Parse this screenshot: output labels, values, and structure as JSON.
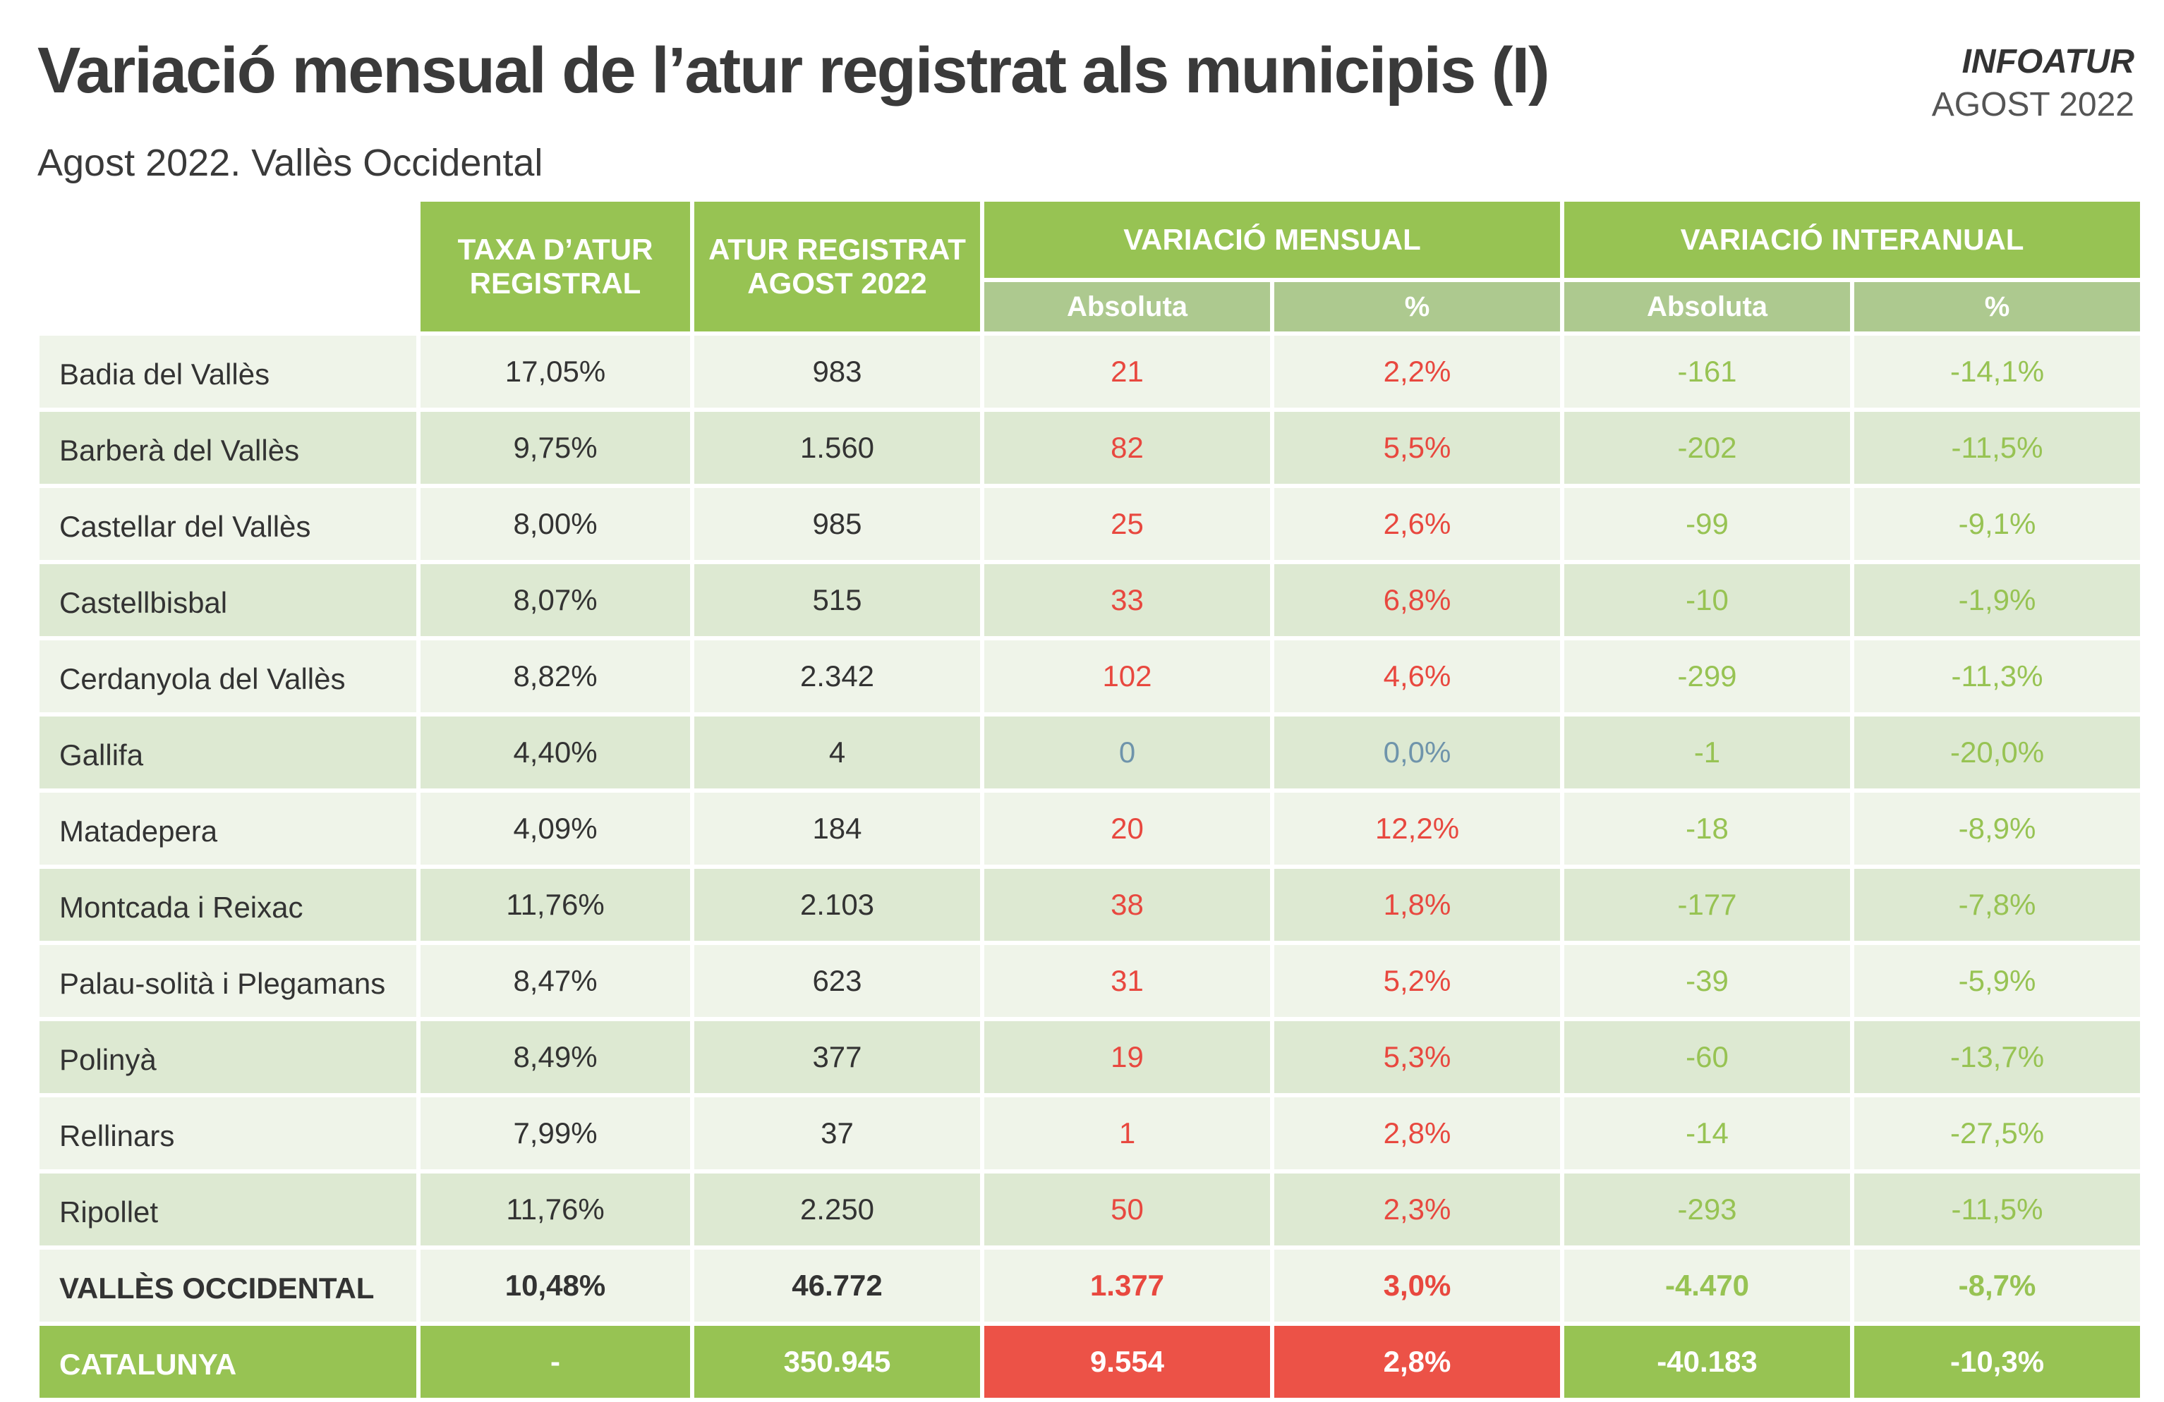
{
  "header": {
    "title": "Variació mensual de l’atur registrat als municipis (I)",
    "subtitle": "Agost 2022. Vallès Occidental",
    "brand": "INFOATUR",
    "period": "AGOST 2022"
  },
  "columns": {
    "rate_l1": "TAXA D’ATUR",
    "rate_l2": "REGISTRAL",
    "reg_l1": "ATUR REGISTRAT",
    "reg_l2": "AGOST 2022",
    "monthly": "VARIACIÓ MENSUAL",
    "annual": "VARIACIÓ INTERANUAL",
    "abs": "Absoluta",
    "pct": "%"
  },
  "colors": {
    "header_green": "#97c353",
    "subheader_green": "#adc98f",
    "increase_red": "#e8483f",
    "decrease_green": "#97c353",
    "zero_blue": "#6f94ab"
  },
  "rows": [
    {
      "name": "Badia del Vallès",
      "rate": "17,05%",
      "reg": "983",
      "m_abs": "21",
      "m_pct": "2,2%",
      "a_abs": "-161",
      "a_pct": "-14,1%"
    },
    {
      "name": "Barberà del Vallès",
      "rate": "9,75%",
      "reg": "1.560",
      "m_abs": "82",
      "m_pct": "5,5%",
      "a_abs": "-202",
      "a_pct": "-11,5%"
    },
    {
      "name": "Castellar del Vallès",
      "rate": "8,00%",
      "reg": "985",
      "m_abs": "25",
      "m_pct": "2,6%",
      "a_abs": "-99",
      "a_pct": "-9,1%"
    },
    {
      "name": "Castellbisbal",
      "rate": "8,07%",
      "reg": "515",
      "m_abs": "33",
      "m_pct": "6,8%",
      "a_abs": "-10",
      "a_pct": "-1,9%"
    },
    {
      "name": "Cerdanyola del Vallès",
      "rate": "8,82%",
      "reg": "2.342",
      "m_abs": "102",
      "m_pct": "4,6%",
      "a_abs": "-299",
      "a_pct": "-11,3%"
    },
    {
      "name": "Gallifa",
      "rate": "4,40%",
      "reg": "4",
      "m_abs": "0",
      "m_pct": "0,0%",
      "a_abs": "-1",
      "a_pct": "-20,0%"
    },
    {
      "name": "Matadepera",
      "rate": "4,09%",
      "reg": "184",
      "m_abs": "20",
      "m_pct": "12,2%",
      "a_abs": "-18",
      "a_pct": "-8,9%"
    },
    {
      "name": "Montcada i Reixac",
      "rate": "11,76%",
      "reg": "2.103",
      "m_abs": "38",
      "m_pct": "1,8%",
      "a_abs": "-177",
      "a_pct": "-7,8%"
    },
    {
      "name": "Palau-solità i Plegamans",
      "rate": "8,47%",
      "reg": "623",
      "m_abs": "31",
      "m_pct": "5,2%",
      "a_abs": "-39",
      "a_pct": "-5,9%"
    },
    {
      "name": "Polinyà",
      "rate": "8,49%",
      "reg": "377",
      "m_abs": "19",
      "m_pct": "5,3%",
      "a_abs": "-60",
      "a_pct": "-13,7%"
    },
    {
      "name": "Rellinars",
      "rate": "7,99%",
      "reg": "37",
      "m_abs": "1",
      "m_pct": "2,8%",
      "a_abs": "-14",
      "a_pct": "-27,5%"
    },
    {
      "name": "Ripollet",
      "rate": "11,76%",
      "reg": "2.250",
      "m_abs": "50",
      "m_pct": "2,3%",
      "a_abs": "-293",
      "a_pct": "-11,5%"
    },
    {
      "name": "VALLÈS OCCIDENTAL",
      "rate": "10,48%",
      "reg": "46.772",
      "m_abs": "1.377",
      "m_pct": "3,0%",
      "a_abs": "-4.470",
      "a_pct": "-8,7%"
    },
    {
      "name": "CATALUNYA",
      "rate": "-",
      "reg": "350.945",
      "m_abs": "9.554",
      "m_pct": "2,8%",
      "a_abs": "-40.183",
      "a_pct": "-10,3%"
    }
  ]
}
